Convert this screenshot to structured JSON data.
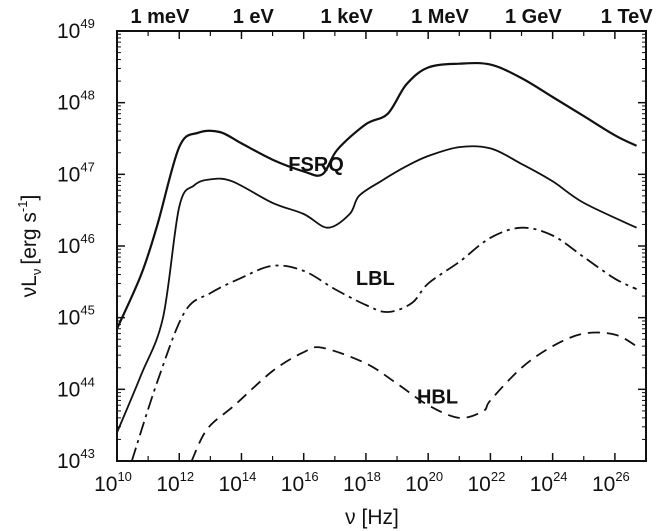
{
  "chart_data": {
    "type": "line",
    "title": "",
    "xlabel": "ν [Hz]",
    "ylabel": "νL",
    "ylabel_sub": "ν",
    "ylabel_unit_main": "[erg s",
    "ylabel_unit_sup": "-1",
    "ylabel_unit_close": "]",
    "x_scale": "log",
    "y_scale": "log",
    "xlim": [
      10000000000.0,
      1e+27
    ],
    "ylim": [
      1e+43,
      1e+49
    ],
    "x_ticks": [
      {
        "base": "10",
        "exp": "10"
      },
      {
        "base": "10",
        "exp": "12"
      },
      {
        "base": "10",
        "exp": "14"
      },
      {
        "base": "10",
        "exp": "16"
      },
      {
        "base": "10",
        "exp": "18"
      },
      {
        "base": "10",
        "exp": "20"
      },
      {
        "base": "10",
        "exp": "22"
      },
      {
        "base": "10",
        "exp": "24"
      },
      {
        "base": "10",
        "exp": "26"
      }
    ],
    "y_ticks": [
      {
        "base": "10",
        "exp": "43"
      },
      {
        "base": "10",
        "exp": "44"
      },
      {
        "base": "10",
        "exp": "45"
      },
      {
        "base": "10",
        "exp": "46"
      },
      {
        "base": "10",
        "exp": "47"
      },
      {
        "base": "10",
        "exp": "48"
      },
      {
        "base": "10",
        "exp": "49"
      }
    ],
    "top_axis_labels": [
      {
        "label": "1 meV",
        "x": 240000000000.0
      },
      {
        "label": "1 eV",
        "x": 240000000000000.0
      },
      {
        "label": "1 keV",
        "x": 2.4e+17
      },
      {
        "label": "1 MeV",
        "x": 2.4e+20
      },
      {
        "label": "1 GeV",
        "x": 2.4e+23
      },
      {
        "label": "1 TeV",
        "x": 2.4e+26
      }
    ],
    "grid": false,
    "series": [
      {
        "name": "FSRQ",
        "style": "solid",
        "label_at": {
          "x": 2.5e+16,
          "y": 1.4e+47
        },
        "points": [
          [
            10000000000.0,
            7e+44
          ],
          [
            60000000000.0,
            4e+45
          ],
          [
            200000000000.0,
            2e+46
          ],
          [
            1000000000000.0,
            2.4e+47
          ],
          [
            4000000000000.0,
            3.8e+47
          ],
          [
            20000000000000.0,
            3.9e+47
          ],
          [
            100000000000000.0,
            2.7e+47
          ],
          [
            1000000000000000.0,
            1.6e+47
          ],
          [
            1e+16,
            1.1e+47
          ],
          [
            4e+16,
            1e+47
          ],
          [
            1.2e+17,
            2.2e+47
          ],
          [
            1e+18,
            5e+47
          ],
          [
            5e+18,
            7e+47
          ],
          [
            2e+19,
            1.8e+48
          ],
          [
            1e+20,
            3.1e+48
          ],
          [
            1e+21,
            3.5e+48
          ],
          [
            1e+22,
            3.4e+48
          ],
          [
            1e+23,
            2.2e+48
          ],
          [
            1e+24,
            1.2e+48
          ],
          [
            1e+25,
            6.5e+47
          ],
          [
            1e+26,
            3.5e+47
          ],
          [
            5e+26,
            2.5e+47
          ]
        ]
      },
      {
        "name": "",
        "style": "solid",
        "points": [
          [
            10000000000.0,
            2.5e+43
          ],
          [
            60000000000.0,
            1.6e+44
          ],
          [
            300000000000.0,
            1e+45
          ],
          [
            1000000000000.0,
            3.5e+46
          ],
          [
            3000000000000.0,
            7e+46
          ],
          [
            10000000000000.0,
            8.5e+46
          ],
          [
            50000000000000.0,
            8e+46
          ],
          [
            1000000000000000.0,
            4e+46
          ],
          [
            1e+16,
            2.8e+46
          ],
          [
            6e+16,
            1.8e+46
          ],
          [
            3e+17,
            2.8e+46
          ],
          [
            6e+17,
            5e+46
          ],
          [
            3e+18,
            8e+46
          ],
          [
            2e+19,
            1.3e+47
          ],
          [
            1e+20,
            1.8e+47
          ],
          [
            1e+21,
            2.4e+47
          ],
          [
            1e+22,
            2.3e+47
          ],
          [
            1e+23,
            1.4e+47
          ],
          [
            1e+24,
            8e+46
          ],
          [
            1e+25,
            4e+46
          ],
          [
            5e+26,
            1.8e+46
          ]
        ]
      },
      {
        "name": "LBL",
        "style": "dashdot",
        "label_at": {
          "x": 2e+18,
          "y": 3.6e+45
        },
        "points": [
          [
            30000000000.0,
            1e+43
          ],
          [
            200000000000.0,
            1.3e+44
          ],
          [
            1500000000000.0,
            1.2e+45
          ],
          [
            10000000000000.0,
            2.2e+45
          ],
          [
            100000000000000.0,
            3.6e+45
          ],
          [
            1000000000000000.0,
            5.3e+45
          ],
          [
            1e+16,
            4.5e+45
          ],
          [
            1e+17,
            2.5e+45
          ],
          [
            1e+18,
            1.5e+45
          ],
          [
            5e+18,
            1.2e+45
          ],
          [
            3e+19,
            1.6e+45
          ],
          [
            1e+20,
            3e+45
          ],
          [
            1e+21,
            6e+45
          ],
          [
            1e+22,
            1.3e+46
          ],
          [
            1e+23,
            1.8e+46
          ],
          [
            1e+24,
            1.4e+46
          ],
          [
            1e+25,
            7e+45
          ],
          [
            1e+26,
            3.5e+45
          ],
          [
            5e+26,
            2.5e+45
          ]
        ]
      },
      {
        "name": "HBL",
        "style": "dashed",
        "label_at": {
          "x": 2e+20,
          "y": 8e+43
        },
        "points": [
          [
            2500000000000.0,
            1e+43
          ],
          [
            8000000000000.0,
            2.8e+43
          ],
          [
            60000000000000.0,
            6e+43
          ],
          [
            1000000000000000.0,
            1.8e+44
          ],
          [
            1e+16,
            3.3e+44
          ],
          [
            4e+16,
            3.8e+44
          ],
          [
            1e+18,
            2.3e+44
          ],
          [
            1e+19,
            1.2e+44
          ],
          [
            1e+20,
            6e+43
          ],
          [
            1e+21,
            4e+43
          ],
          [
            6e+21,
            5e+43
          ],
          [
            1e+22,
            7e+43
          ],
          [
            1e+23,
            2e+44
          ],
          [
            1e+24,
            4e+44
          ],
          [
            1e+25,
            6e+44
          ],
          [
            1e+26,
            5.8e+44
          ],
          [
            5e+26,
            4e+44
          ]
        ]
      }
    ]
  }
}
